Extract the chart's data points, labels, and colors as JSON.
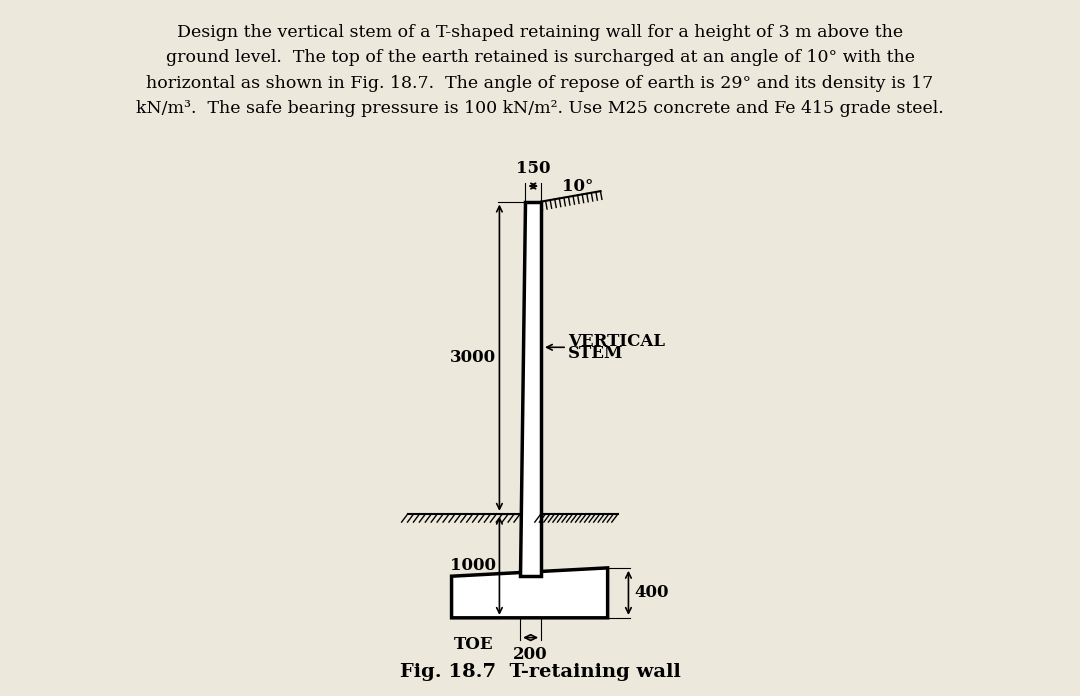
{
  "title_text": "Design the vertical stem of a T-shaped retaining wall for a height of 3 m above the\nground level.  The top of the earth retained is surcharged at an angle of 10° with the\nhorizontal as shown in Fig. 18.7.  The angle of repose of earth is 29° and its density is 17\nkN/m³.  The safe bearing pressure is 100 kN/m². Use M25 concrete and Fe 415 grade steel.",
  "fig_caption": "Fig. 18.7  T-retaining wall",
  "label_vertical_stem_1": "VERTICAL",
  "label_vertical_stem_2": "STEM",
  "label_toe": "TOE",
  "dim_150": "150",
  "dim_3000": "3000",
  "dim_1000": "1000",
  "dim_400": "400",
  "dim_200": "200",
  "angle_label": "10°",
  "bg_color": "#ede8dc",
  "title_fontsize": 12.5,
  "label_fontsize": 12,
  "dim_fontsize": 12,
  "caption_fontsize": 14,
  "note_fontsize": 9
}
